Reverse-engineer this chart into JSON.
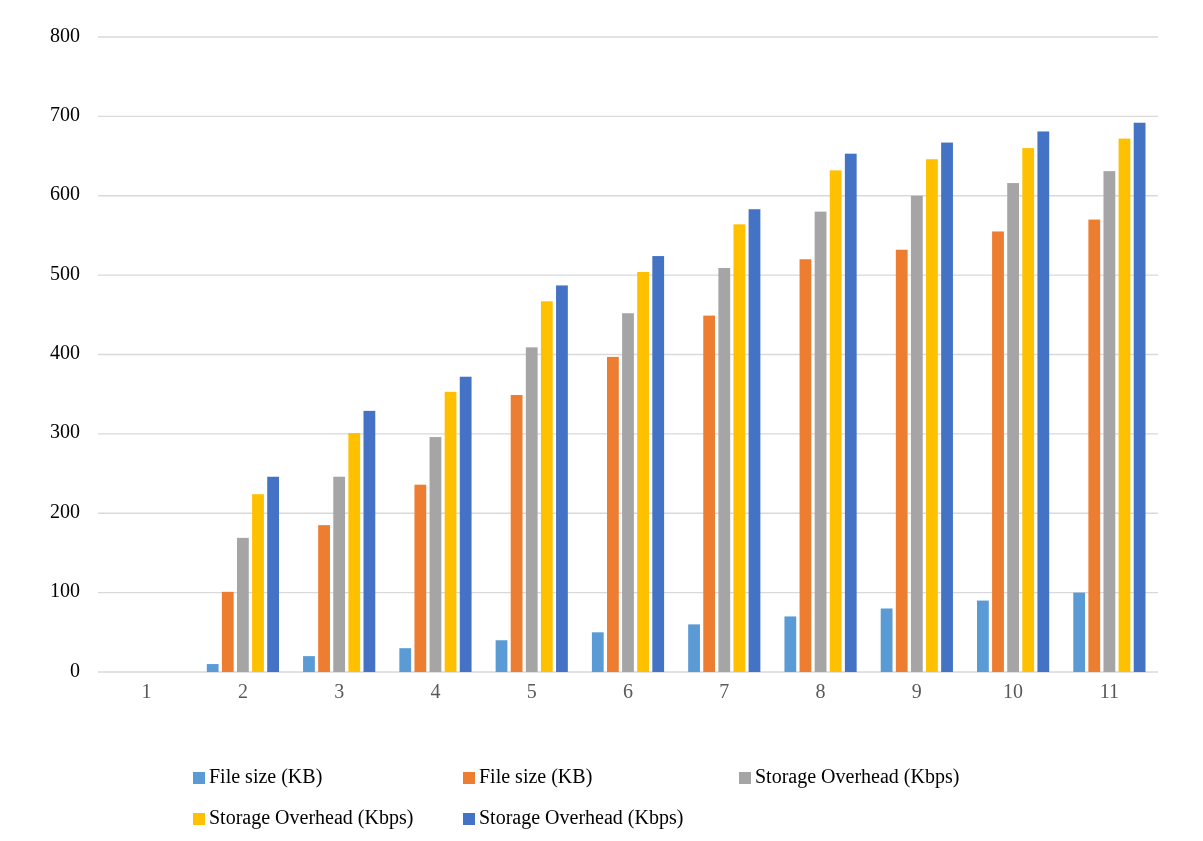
{
  "chart_data": {
    "type": "bar",
    "categories": [
      "1",
      "2",
      "3",
      "4",
      "5",
      "6",
      "7",
      "8",
      "9",
      "10",
      "11"
    ],
    "series": [
      {
        "name": "File size (KB)",
        "color": "#5b9bd5",
        "values": [
          0,
          10,
          20,
          30,
          40,
          50,
          60,
          70,
          80,
          90,
          100
        ]
      },
      {
        "name": "File size (KB)",
        "color": "#ed7d31",
        "values": [
          0,
          101,
          185,
          236,
          349,
          397,
          449,
          520,
          532,
          555,
          570
        ]
      },
      {
        "name": "Storage Overhead (Kbps)",
        "color": "#a5a5a5",
        "values": [
          0,
          169,
          246,
          296,
          409,
          452,
          509,
          580,
          600,
          616,
          631
        ]
      },
      {
        "name": "Storage Overhead (Kbps)",
        "color": "#ffc000",
        "values": [
          0,
          224,
          301,
          353,
          467,
          504,
          564,
          632,
          646,
          660,
          672
        ]
      },
      {
        "name": "Storage Overhead (Kbps)",
        "color": "#4472c4",
        "values": [
          0,
          246,
          329,
          372,
          487,
          524,
          583,
          653,
          667,
          681,
          692
        ]
      }
    ],
    "ylim": [
      0,
      800
    ],
    "yticks": [
      0,
      100,
      200,
      300,
      400,
      500,
      600,
      700,
      800
    ],
    "grid": "y",
    "legend": "bottom"
  }
}
